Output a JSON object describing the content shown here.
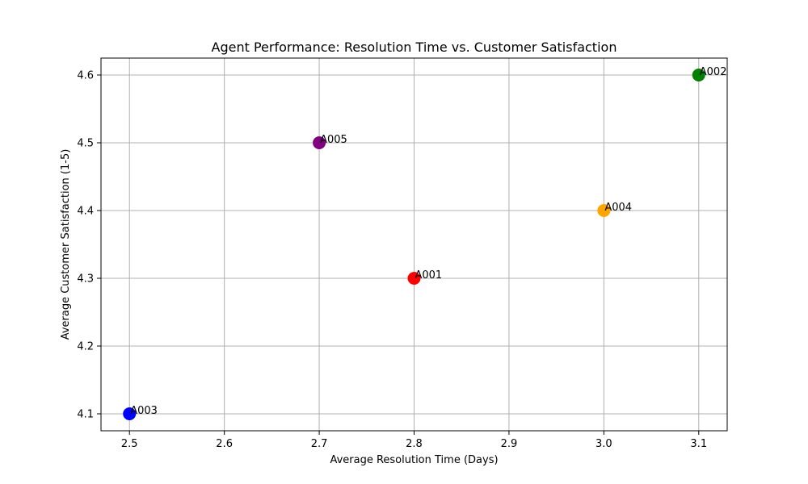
{
  "chart_data": {
    "type": "scatter",
    "title": "Agent Performance: Resolution Time vs. Customer Satisfaction",
    "xlabel": "Average Resolution Time (Days)",
    "ylabel": "Average Customer Satisfaction (1-5)",
    "xlim": [
      2.47,
      3.13
    ],
    "ylim": [
      4.075,
      4.625
    ],
    "xticks": [
      "2.5",
      "2.6",
      "2.7",
      "2.8",
      "2.9",
      "3.0",
      "3.1"
    ],
    "yticks": [
      "4.1",
      "4.2",
      "4.3",
      "4.4",
      "4.5",
      "4.6"
    ],
    "grid": true,
    "points": [
      {
        "label": "A001",
        "x": 2.8,
        "y": 4.3,
        "color": "#ff0000"
      },
      {
        "label": "A002",
        "x": 3.1,
        "y": 4.6,
        "color": "#008000"
      },
      {
        "label": "A003",
        "x": 2.5,
        "y": 4.1,
        "color": "#0000ff"
      },
      {
        "label": "A004",
        "x": 3.0,
        "y": 4.4,
        "color": "#ffa500"
      },
      {
        "label": "A005",
        "x": 2.7,
        "y": 4.5,
        "color": "#800080"
      }
    ]
  }
}
